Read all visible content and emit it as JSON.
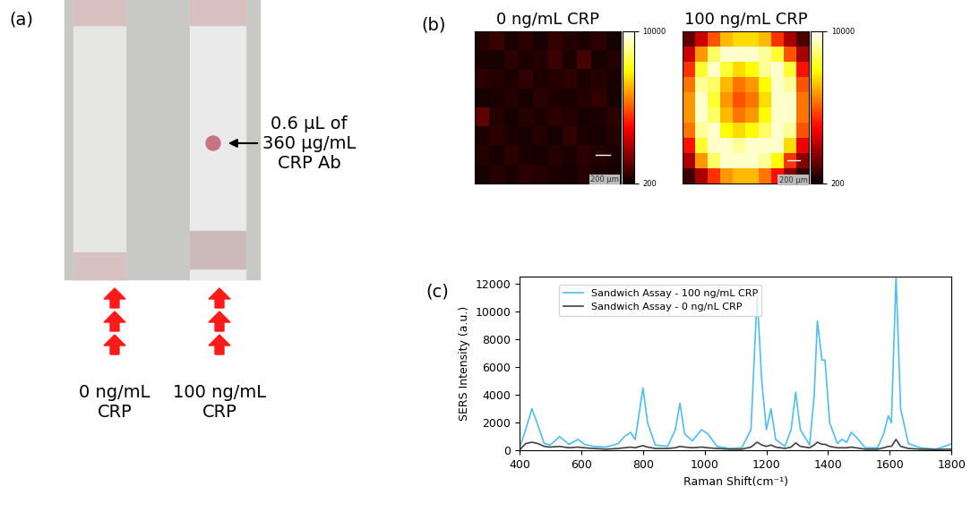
{
  "panel_a": {
    "label": "(a)",
    "annotation": "0.6 µL of\n360 µg/mL\nCRP Ab",
    "strips": [
      "0 ng/mL\nCRP",
      "100 ng/mL\nCRP"
    ]
  },
  "panel_b": {
    "label": "(b)",
    "scale_bar": "200 µm",
    "colorbar": {
      "range": [
        200,
        10000
      ],
      "ticks": [
        200,
        10000
      ]
    },
    "maps": [
      {
        "title": "0 ng/mL CRP",
        "cells": [
          [
            600,
            900,
            500,
            700,
            400,
            800,
            600,
            500,
            700,
            400
          ],
          [
            500,
            400,
            700,
            500,
            600,
            900,
            500,
            1100,
            400,
            600
          ],
          [
            700,
            600,
            500,
            800,
            500,
            600,
            700,
            500,
            600,
            500
          ],
          [
            400,
            500,
            600,
            400,
            700,
            500,
            400,
            600,
            800,
            400
          ],
          [
            1500,
            600,
            400,
            600,
            500,
            700,
            600,
            400,
            500,
            700
          ],
          [
            500,
            700,
            500,
            400,
            600,
            400,
            800,
            500,
            400,
            600
          ],
          [
            600,
            400,
            700,
            500,
            400,
            600,
            500,
            700,
            600,
            500
          ],
          [
            400,
            600,
            500,
            700,
            600,
            500,
            400,
            600,
            500,
            400
          ]
        ]
      },
      {
        "title": "100 ng/mL CRP",
        "cells": [
          [
            1500,
            3000,
            5000,
            6500,
            7000,
            7000,
            6500,
            4500,
            2500,
            1200
          ],
          [
            3000,
            6000,
            8500,
            9500,
            9500,
            9500,
            9000,
            8000,
            5000,
            2500
          ],
          [
            4500,
            8000,
            9500,
            8000,
            7000,
            7500,
            9000,
            9500,
            8000,
            4000
          ],
          [
            5500,
            9000,
            8500,
            6500,
            5500,
            6000,
            7500,
            9500,
            9000,
            5000
          ],
          [
            6000,
            9500,
            8000,
            6000,
            5000,
            5500,
            7000,
            9500,
            9500,
            5500
          ],
          [
            6000,
            9500,
            8500,
            6500,
            5500,
            6000,
            7500,
            9500,
            9500,
            5500
          ],
          [
            5500,
            9000,
            9500,
            7500,
            7000,
            7500,
            8500,
            9500,
            9000,
            5000
          ],
          [
            4000,
            8000,
            9500,
            9500,
            9000,
            9500,
            9500,
            9500,
            7000,
            3500
          ],
          [
            2500,
            6000,
            8500,
            9500,
            9500,
            9500,
            9000,
            7500,
            4500,
            2000
          ],
          [
            1000,
            2500,
            4500,
            6000,
            6500,
            6500,
            5500,
            4000,
            2000,
            800
          ]
        ]
      }
    ]
  },
  "panel_c": {
    "label": "(c)"
  },
  "chart_data": {
    "type": "line",
    "x_label": "Raman Shift(cm⁻¹)",
    "y_label": "SERS Intensity (a.u.)",
    "x": [
      400,
      420,
      440,
      460,
      480,
      500,
      530,
      560,
      590,
      610,
      640,
      680,
      720,
      740,
      760,
      775,
      790,
      800,
      815,
      840,
      880,
      905,
      920,
      935,
      960,
      990,
      1010,
      1040,
      1080,
      1120,
      1150,
      1170,
      1185,
      1200,
      1215,
      1230,
      1260,
      1280,
      1295,
      1310,
      1340,
      1355,
      1365,
      1380,
      1390,
      1405,
      1430,
      1445,
      1460,
      1475,
      1490,
      1520,
      1560,
      1580,
      1595,
      1605,
      1620,
      1635,
      1660,
      1700,
      1750,
      1790,
      1800
    ],
    "series": [
      {
        "name": "Sandwich Assay - 100 ng/mL CRP",
        "color": "#4dbeee",
        "values": [
          200,
          1500,
          3000,
          1800,
          500,
          400,
          1000,
          450,
          800,
          450,
          300,
          250,
          500,
          1000,
          1300,
          800,
          3000,
          4500,
          2000,
          400,
          300,
          1500,
          3400,
          1200,
          700,
          1500,
          1200,
          300,
          150,
          200,
          1500,
          11100,
          5000,
          1500,
          3000,
          800,
          300,
          1500,
          4200,
          1500,
          400,
          4000,
          9300,
          6500,
          6500,
          2000,
          500,
          800,
          600,
          1300,
          1000,
          200,
          200,
          1200,
          2500,
          2000,
          12500,
          3000,
          500,
          200,
          100,
          400,
          500
        ]
      },
      {
        "name": "Sandwich Assay - 0 ng/nL CRP",
        "color": "#404040",
        "values": [
          50,
          500,
          600,
          500,
          300,
          250,
          300,
          200,
          250,
          200,
          150,
          100,
          150,
          200,
          250,
          200,
          300,
          350,
          250,
          150,
          150,
          200,
          300,
          250,
          200,
          250,
          200,
          150,
          100,
          100,
          250,
          600,
          400,
          300,
          400,
          250,
          150,
          250,
          550,
          300,
          200,
          400,
          600,
          450,
          450,
          300,
          200,
          200,
          200,
          250,
          200,
          100,
          100,
          200,
          300,
          300,
          800,
          300,
          150,
          100,
          80,
          100,
          100
        ]
      }
    ],
    "xlim": [
      400,
      1800
    ],
    "xticks": [
      400,
      600,
      800,
      1000,
      1200,
      1400,
      1600,
      1800
    ],
    "ylim": [
      0,
      12500
    ],
    "yticks": [
      0,
      2000,
      4000,
      6000,
      8000,
      10000,
      12000
    ],
    "legend": "upper left",
    "grid": false
  }
}
